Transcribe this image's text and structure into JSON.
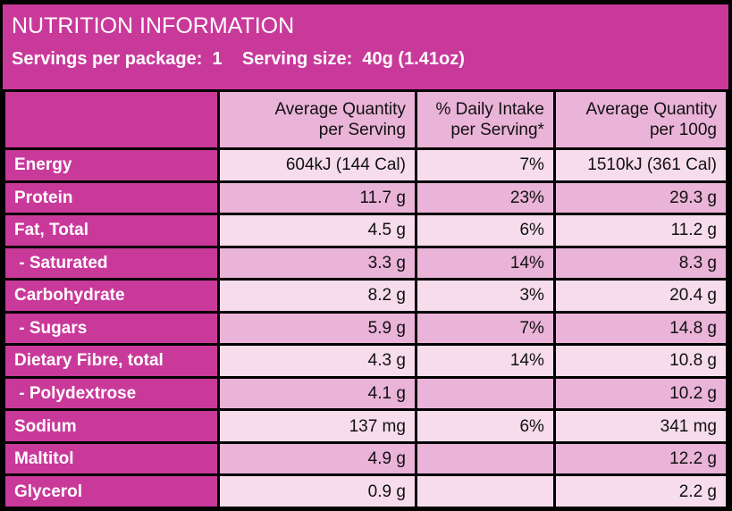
{
  "header": {
    "title": "NUTRITION INFORMATION",
    "subtitle": "Servings per package:  1    Serving size:  40g (1.41oz)"
  },
  "columns": [
    {
      "line1": "Average Quantity",
      "line2": "per Serving"
    },
    {
      "line1": "% Daily Intake",
      "line2": "per Serving*"
    },
    {
      "line1": "Average Quantity",
      "line2": "per 100g"
    }
  ],
  "rows": [
    {
      "label": "Energy",
      "per_serving": "604kJ (144 Cal)",
      "daily_intake": "7%",
      "per_100g": "1510kJ (361 Cal)"
    },
    {
      "label": "Protein",
      "per_serving": "11.7 g",
      "daily_intake": "23%",
      "per_100g": "29.3 g"
    },
    {
      "label": "Fat, Total",
      "per_serving": "4.5 g",
      "daily_intake": "6%",
      "per_100g": "11.2 g"
    },
    {
      "label": " - Saturated",
      "per_serving": "3.3 g",
      "daily_intake": "14%",
      "per_100g": "8.3 g"
    },
    {
      "label": "Carbohydrate",
      "per_serving": "8.2 g",
      "daily_intake": "3%",
      "per_100g": "20.4 g"
    },
    {
      "label": " - Sugars",
      "per_serving": "5.9 g",
      "daily_intake": "7%",
      "per_100g": "14.8 g"
    },
    {
      "label": "Dietary Fibre, total",
      "per_serving": "4.3 g",
      "daily_intake": "14%",
      "per_100g": "10.8 g"
    },
    {
      "label": " - Polydextrose",
      "per_serving": "4.1 g",
      "daily_intake": "",
      "per_100g": "10.2 g"
    },
    {
      "label": "Sodium",
      "per_serving": "137 mg",
      "daily_intake": "6%",
      "per_100g": "341 mg"
    },
    {
      "label": "Maltitol",
      "per_serving": "4.9 g",
      "daily_intake": "",
      "per_100g": "12.2 g"
    },
    {
      "label": "Glycerol",
      "per_serving": "0.9 g",
      "daily_intake": "",
      "per_100g": "2.2 g"
    }
  ],
  "colors": {
    "magenta": "#c9399a",
    "light_pink": "#f7dcec",
    "mid_pink": "#eab3d8",
    "background": "#000000"
  }
}
